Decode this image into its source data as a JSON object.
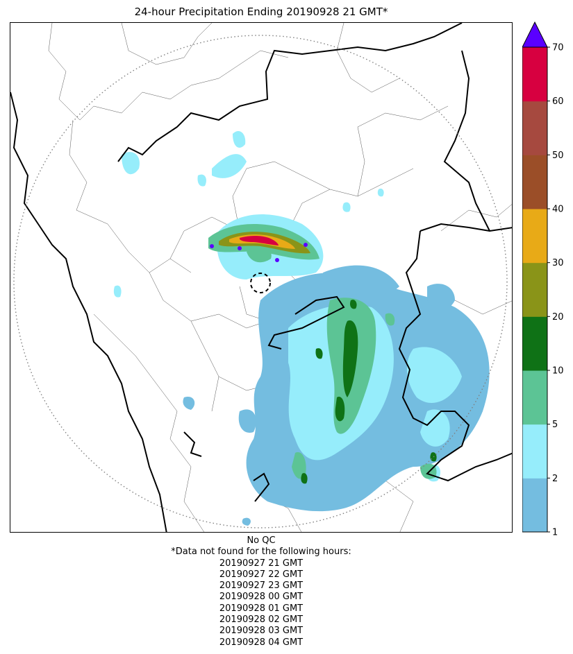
{
  "title": "24-hour Precipitation Ending 20190928 21 GMT*",
  "colorbar": {
    "extend": "max",
    "levels": [
      1,
      2,
      5,
      10,
      20,
      30,
      40,
      50,
      60,
      70
    ],
    "tick_labels": [
      "1",
      "2",
      "5",
      "10",
      "20",
      "30",
      "40",
      "50",
      "60",
      "70"
    ],
    "colors": [
      "#74bde0",
      "#96edfb",
      "#5cc495",
      "#0f7216",
      "#8a9418",
      "#e8aa17",
      "#9b4e28",
      "#a6493f",
      "#d70040"
    ],
    "over_color": "#5a00ff"
  },
  "map": {
    "radar_range_ring": "dotted",
    "radar_site_marker": "dashed-circle",
    "background": "#ffffff",
    "border_color": "#000000"
  },
  "footer": {
    "qc_label": "No QC",
    "missing_header": "*Data not found for the following hours:",
    "missing_hours": [
      "20190927 21 GMT",
      "20190927 22 GMT",
      "20190927 23 GMT",
      "20190928 00 GMT",
      "20190928 01 GMT",
      "20190928 02 GMT",
      "20190928 03 GMT",
      "20190928 04 GMT"
    ]
  }
}
